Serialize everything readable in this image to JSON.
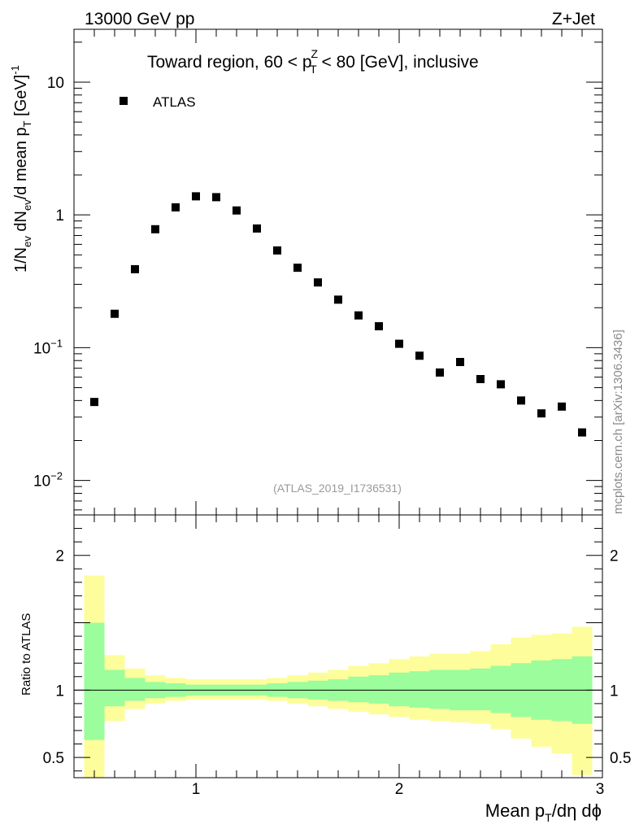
{
  "chart_data": {
    "type": "scatter",
    "energy_label": "13000 GeV pp",
    "process_label": "Z+Jet",
    "title_parts": {
      "prefix": "Toward region, 60 < p",
      "sup": "Z",
      "sub": "T",
      "suffix": " < 80 [GeV], inclusive"
    },
    "analysis_id": "(ATLAS_2019_I1736531)",
    "watermark": "mcplots.cern.ch [arXiv:1306.3436]",
    "legend": [
      {
        "label": "ATLAS",
        "marker": "square",
        "color": "#000000"
      }
    ],
    "ylabel_main": {
      "p1": "1/N",
      "s1": "ev",
      "p2": " dN",
      "s2": "ev",
      "p3": "/d mean p",
      "s3": "T",
      "p4": " [GeV]",
      "sup": "-1"
    },
    "xlabel": {
      "p1": "Mean p",
      "s1": "T",
      "p2": "/dη dϕ"
    },
    "ylabel_ratio": "Ratio to ATLAS",
    "x_range": [
      0.4,
      3.0
    ],
    "y_range_main": [
      0.0055,
      25
    ],
    "y_scale_main": "log",
    "y_range_ratio": [
      0.35,
      2.3
    ],
    "x_ticks": [
      {
        "v": 1,
        "label": "1"
      },
      {
        "v": 2,
        "label": "2"
      },
      {
        "v": 3,
        "label": "3"
      }
    ],
    "y_ticks_main": [
      {
        "v": 10,
        "base": "10",
        "exp": ""
      },
      {
        "v": 1,
        "base": "1",
        "exp": ""
      },
      {
        "v": 0.1,
        "base": "10",
        "exp": "−1"
      },
      {
        "v": 0.01,
        "base": "10",
        "exp": "−2"
      }
    ],
    "y_ticks_ratio": [
      {
        "v": 0.5,
        "label": "0.5"
      },
      {
        "v": 1,
        "label": "1"
      },
      {
        "v": 2,
        "label": "2"
      }
    ],
    "series": [
      {
        "name": "ATLAS",
        "x": [
          0.5,
          0.6,
          0.7,
          0.8,
          0.9,
          1.0,
          1.1,
          1.2,
          1.3,
          1.4,
          1.5,
          1.6,
          1.7,
          1.8,
          1.9,
          2.0,
          2.1,
          2.2,
          2.3,
          2.4,
          2.5,
          2.6,
          2.7,
          2.8,
          2.9
        ],
        "y": [
          0.039,
          0.18,
          0.39,
          0.78,
          1.14,
          1.38,
          1.36,
          1.08,
          0.79,
          0.54,
          0.4,
          0.31,
          0.23,
          0.175,
          0.145,
          0.107,
          0.087,
          0.065,
          0.078,
          0.058,
          0.053,
          0.04,
          0.032,
          0.036,
          0.023
        ]
      }
    ],
    "ratio_bands": {
      "bin_edges": [
        0.45,
        0.55,
        0.65,
        0.75,
        0.85,
        0.95,
        1.05,
        1.15,
        1.25,
        1.35,
        1.45,
        1.55,
        1.65,
        1.75,
        1.85,
        1.95,
        2.05,
        2.15,
        2.25,
        2.35,
        2.45,
        2.55,
        2.65,
        2.75,
        2.85,
        2.95
      ],
      "inner_up": [
        1.5,
        1.15,
        1.09,
        1.06,
        1.05,
        1.04,
        1.04,
        1.04,
        1.04,
        1.05,
        1.06,
        1.07,
        1.08,
        1.1,
        1.11,
        1.13,
        1.14,
        1.15,
        1.15,
        1.16,
        1.18,
        1.2,
        1.22,
        1.23,
        1.25
      ],
      "inner_down": [
        0.63,
        0.88,
        0.92,
        0.94,
        0.95,
        0.96,
        0.96,
        0.96,
        0.96,
        0.95,
        0.94,
        0.93,
        0.92,
        0.91,
        0.9,
        0.88,
        0.87,
        0.86,
        0.85,
        0.85,
        0.83,
        0.8,
        0.78,
        0.77,
        0.75
      ],
      "outer_up": [
        1.85,
        1.26,
        1.16,
        1.11,
        1.09,
        1.08,
        1.08,
        1.08,
        1.08,
        1.09,
        1.11,
        1.13,
        1.15,
        1.18,
        1.2,
        1.23,
        1.25,
        1.27,
        1.27,
        1.29,
        1.34,
        1.39,
        1.41,
        1.42,
        1.47
      ],
      "outer_down": [
        0.33,
        0.77,
        0.86,
        0.9,
        0.92,
        0.93,
        0.93,
        0.93,
        0.93,
        0.92,
        0.9,
        0.88,
        0.86,
        0.84,
        0.82,
        0.8,
        0.78,
        0.77,
        0.76,
        0.75,
        0.71,
        0.64,
        0.58,
        0.53,
        0.37
      ],
      "inner_color": "#9bfd9b",
      "outer_color": "#fdfd9b",
      "reference_value": 1
    }
  }
}
